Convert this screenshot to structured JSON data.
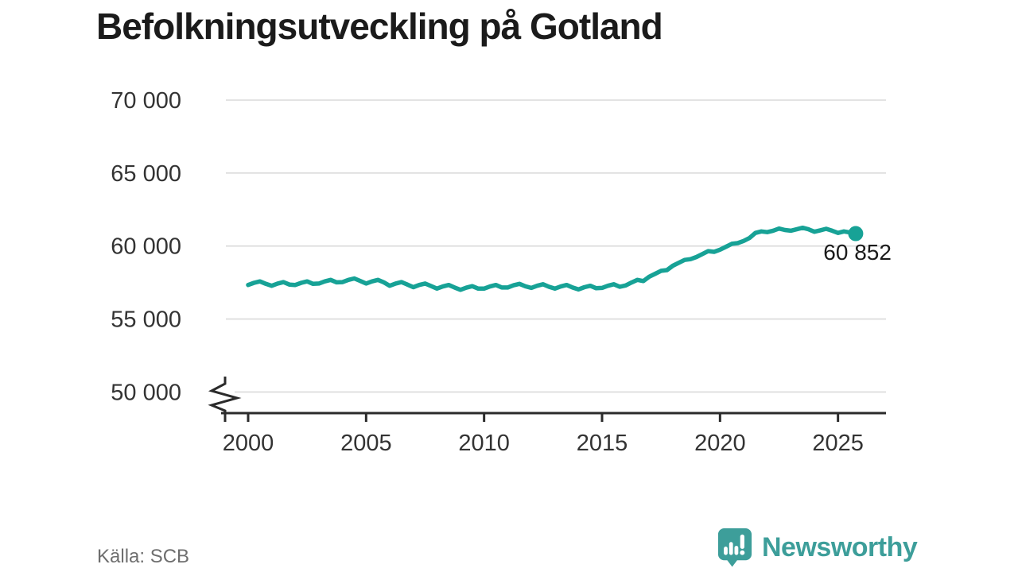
{
  "page": {
    "title": "Befolkningsutveckling på Gotland",
    "source": "Källa: SCB"
  },
  "branding": {
    "logo_text": "Newsworthy",
    "logo_icon": "newsworthy-bubble-chart-icon",
    "brand_color": "#3d9e9a"
  },
  "chart_data": {
    "type": "line",
    "title": "Befolkningsutveckling på Gotland",
    "xlabel": "",
    "ylabel": "",
    "grid": "horizontal",
    "legend": "none",
    "series_name": "Befolkning Gotland",
    "series_color": "#17a296",
    "axis_break_at_bottom": true,
    "xlim": [
      2000,
      2027
    ],
    "ylim": [
      50000,
      70000
    ],
    "xticks": [
      2000,
      2005,
      2010,
      2015,
      2020,
      2025
    ],
    "xtick_labels": [
      "2000",
      "2005",
      "2010",
      "2015",
      "2020",
      "2025"
    ],
    "yticks": [
      50000,
      55000,
      60000,
      65000,
      70000
    ],
    "ytick_labels": [
      "50 000",
      "55 000",
      "60 000",
      "65 000",
      "70 000"
    ],
    "end_value": 60852,
    "end_label": "60 852",
    "x": [
      2000,
      2000.25,
      2000.5,
      2000.75,
      2001,
      2001.25,
      2001.5,
      2001.75,
      2002,
      2002.25,
      2002.5,
      2002.75,
      2003,
      2003.25,
      2003.5,
      2003.75,
      2004,
      2004.25,
      2004.5,
      2004.75,
      2005,
      2005.25,
      2005.5,
      2005.75,
      2006,
      2006.25,
      2006.5,
      2006.75,
      2007,
      2007.25,
      2007.5,
      2007.75,
      2008,
      2008.25,
      2008.5,
      2008.75,
      2009,
      2009.25,
      2009.5,
      2009.75,
      2010,
      2010.25,
      2010.5,
      2010.75,
      2011,
      2011.25,
      2011.5,
      2011.75,
      2012,
      2012.25,
      2012.5,
      2012.75,
      2013,
      2013.25,
      2013.5,
      2013.75,
      2014,
      2014.25,
      2014.5,
      2014.75,
      2015,
      2015.25,
      2015.5,
      2015.75,
      2016,
      2016.25,
      2016.5,
      2016.75,
      2017,
      2017.25,
      2017.5,
      2017.75,
      2018,
      2018.25,
      2018.5,
      2018.75,
      2019,
      2019.25,
      2019.5,
      2019.75,
      2020,
      2020.25,
      2020.5,
      2020.75,
      2021,
      2021.25,
      2021.5,
      2021.75,
      2022,
      2022.25,
      2022.5,
      2022.75,
      2023,
      2023.25,
      2023.5,
      2023.75,
      2024,
      2024.25,
      2024.5,
      2024.75,
      2025,
      2025.25,
      2025.5,
      2025.75
    ],
    "y": [
      57330,
      57480,
      57580,
      57410,
      57280,
      57430,
      57530,
      57360,
      57330,
      57480,
      57580,
      57410,
      57430,
      57580,
      57680,
      57510,
      57530,
      57680,
      57780,
      57610,
      57430,
      57580,
      57680,
      57510,
      57280,
      57430,
      57530,
      57360,
      57180,
      57330,
      57430,
      57260,
      57080,
      57230,
      57330,
      57160,
      57000,
      57150,
      57250,
      57080,
      57080,
      57230,
      57330,
      57160,
      57160,
      57310,
      57410,
      57240,
      57130,
      57280,
      57380,
      57210,
      57080,
      57230,
      57330,
      57160,
      57030,
      57180,
      57280,
      57110,
      57130,
      57280,
      57380,
      57210,
      57300,
      57500,
      57680,
      57600,
      57900,
      58100,
      58300,
      58350,
      58650,
      58850,
      59050,
      59100,
      59250,
      59450,
      59650,
      59600,
      59750,
      59950,
      60150,
      60200,
      60350,
      60550,
      60900,
      61000,
      60950,
      61050,
      61200,
      61100,
      61050,
      61150,
      61250,
      61150,
      60980,
      61080,
      61180,
      61050,
      60900,
      61000,
      60930,
      60852
    ]
  }
}
